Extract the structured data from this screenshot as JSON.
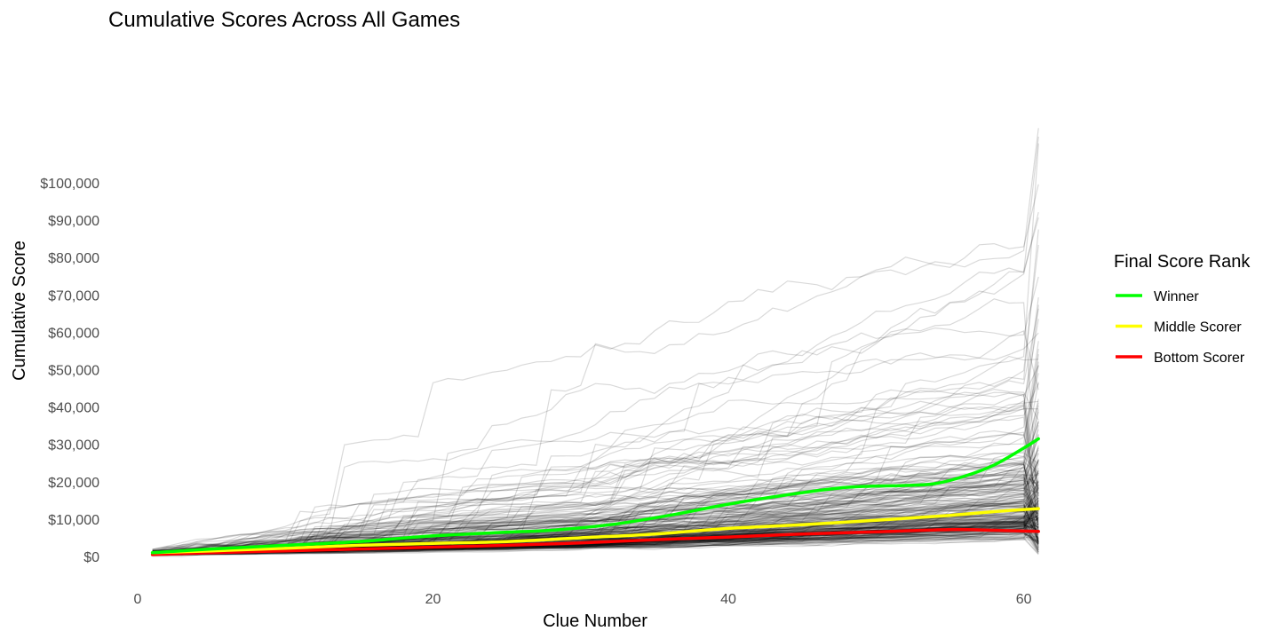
{
  "chart_data": {
    "type": "line",
    "title": "Cumulative Scores Across All Games",
    "xlabel": "Clue Number",
    "ylabel": "Cumulative Score",
    "xlim": [
      0,
      61
    ],
    "ylim": [
      0,
      130000
    ],
    "x_ticks": [
      {
        "value": 0,
        "label": "0"
      },
      {
        "value": 20,
        "label": "20"
      },
      {
        "value": 40,
        "label": "40"
      },
      {
        "value": 60,
        "label": "60"
      }
    ],
    "y_ticks": [
      {
        "value": 0,
        "label": "$0"
      },
      {
        "value": 10000,
        "label": "$10,000"
      },
      {
        "value": 20000,
        "label": "$20,000"
      },
      {
        "value": 30000,
        "label": "$30,000"
      },
      {
        "value": 40000,
        "label": "$40,000"
      },
      {
        "value": 50000,
        "label": "$50,000"
      },
      {
        "value": 60000,
        "label": "$60,000"
      },
      {
        "value": 70000,
        "label": "$70,000"
      },
      {
        "value": 80000,
        "label": "$80,000"
      },
      {
        "value": 90000,
        "label": "$90,000"
      },
      {
        "value": 100000,
        "label": "$100,000"
      }
    ],
    "grid": false,
    "legend": {
      "title": "Final Score Rank",
      "position": "right"
    },
    "background_lines": {
      "description_hidden": true,
      "color": "#000000",
      "opacity": 0.15
    },
    "series": [
      {
        "name": "Winner",
        "color": "#00ff00",
        "x": [
          1,
          5,
          10,
          15,
          20,
          25,
          28,
          32,
          36,
          40,
          44,
          48,
          52,
          54,
          56,
          58,
          60,
          61
        ],
        "y": [
          1000,
          2000,
          3000,
          4000,
          5500,
          6500,
          7000,
          8500,
          11000,
          14000,
          16500,
          18500,
          19000,
          19500,
          21500,
          24500,
          29000,
          31500
        ]
      },
      {
        "name": "Middle Scorer",
        "color": "#ffff00",
        "x": [
          1,
          5,
          10,
          15,
          20,
          25,
          30,
          35,
          40,
          45,
          50,
          55,
          58,
          61
        ],
        "y": [
          1000,
          1500,
          2200,
          3000,
          3500,
          4000,
          5000,
          6000,
          7500,
          8500,
          9700,
          11000,
          12000,
          12800
        ]
      },
      {
        "name": "Bottom Scorer",
        "color": "#ff0000",
        "x": [
          1,
          5,
          10,
          15,
          20,
          25,
          30,
          35,
          40,
          45,
          50,
          55,
          58,
          61
        ],
        "y": [
          500,
          1000,
          1500,
          2000,
          2500,
          3000,
          3600,
          4500,
          5200,
          6000,
          6600,
          7200,
          7000,
          6700
        ]
      }
    ]
  }
}
